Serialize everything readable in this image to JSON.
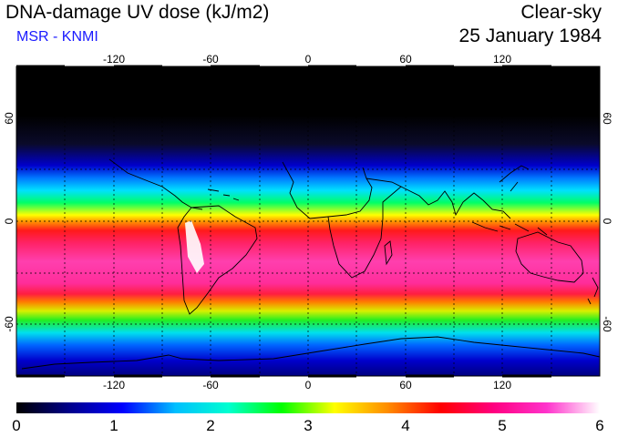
{
  "header": {
    "title": "DNA-damage UV dose (kJ/m2)",
    "subtitle": "MSR - KNMI",
    "mode": "Clear-sky",
    "date": "25 January 1984"
  },
  "map": {
    "lon_ticks": [
      "-120",
      "-60",
      "0",
      "60",
      "120"
    ],
    "lat_ticks_left": [
      "60",
      "0",
      "-60"
    ],
    "lat_ticks_right": [
      "60",
      "0",
      "-60"
    ]
  },
  "colorbar": {
    "ticks": [
      "0",
      "1",
      "2",
      "3",
      "4",
      "5",
      "6"
    ],
    "colors": [
      "#000000",
      "#00008b",
      "#0000ff",
      "#00bfff",
      "#00ffd0",
      "#00ff00",
      "#ffff00",
      "#ff8c00",
      "#ff0000",
      "#ff0080",
      "#ff33cc",
      "#ffffff"
    ]
  },
  "colors": {
    "subtitle": "#1a1aff",
    "coast": "#000000"
  }
}
